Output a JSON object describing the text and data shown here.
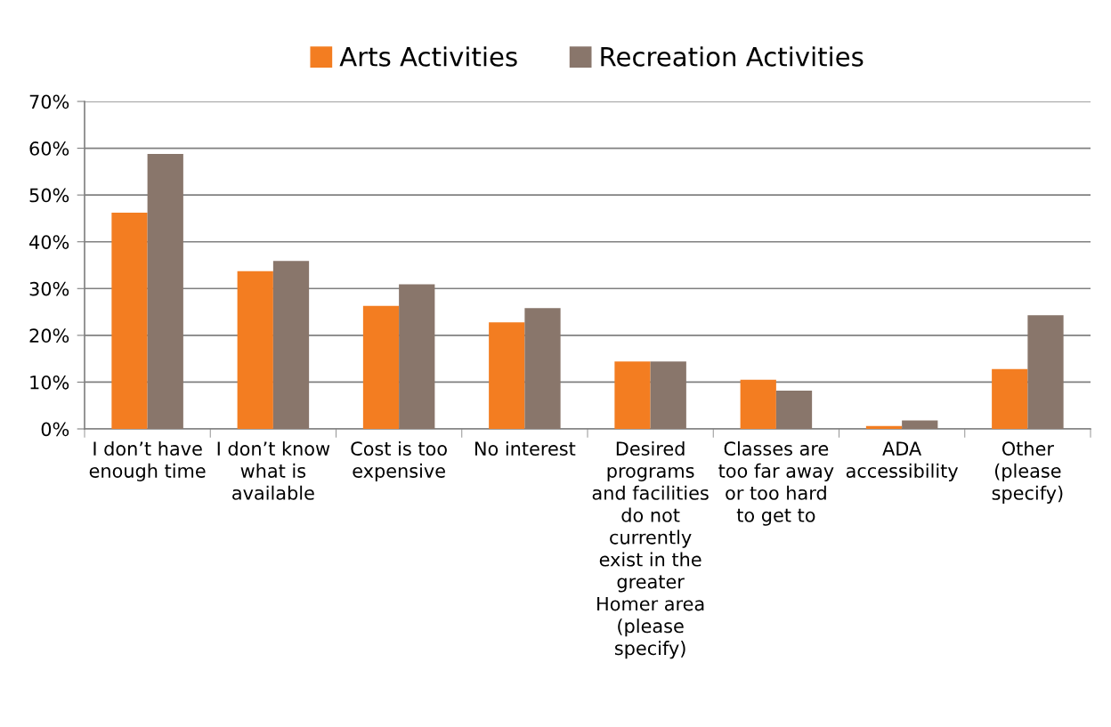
{
  "chart_data": {
    "type": "bar",
    "categories": [
      "I don’t have\nenough time",
      "I don’t know\nwhat is\navailable",
      "Cost is too\nexpensive",
      "No interest",
      "Desired\nprograms\nand facilities\ndo not\ncurrently\nexist in the\ngreater\nHomer area\n(please\nspecify)",
      "Classes are\ntoo far away\nor too hard\nto get to",
      "ADA\naccessibility",
      "Other\n(please\nspecify)"
    ],
    "series": [
      {
        "name": "Arts Activities",
        "color": "#f37d21",
        "values": [
          46.2,
          33.7,
          26.3,
          22.8,
          14.4,
          10.5,
          0.6,
          12.8
        ]
      },
      {
        "name": "Recreation Activities",
        "color": "#89766b",
        "values": [
          58.8,
          35.9,
          30.9,
          25.8,
          14.4,
          8.2,
          1.8,
          24.3
        ]
      }
    ],
    "ylim": [
      0,
      70
    ],
    "yticks": [
      {
        "value": 0,
        "label": "0%"
      },
      {
        "value": 10,
        "label": "10%"
      },
      {
        "value": 20,
        "label": "20%"
      },
      {
        "value": 30,
        "label": "30%"
      },
      {
        "value": 40,
        "label": "40%"
      },
      {
        "value": 50,
        "label": "50%"
      },
      {
        "value": 60,
        "label": "60%"
      },
      {
        "value": 70,
        "label": "70%"
      }
    ],
    "grid": "y",
    "legend": "top"
  }
}
